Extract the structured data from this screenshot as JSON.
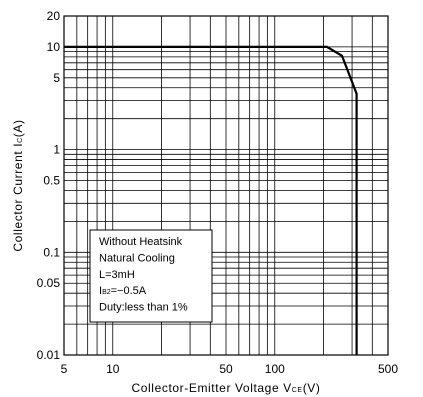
{
  "chart_data": {
    "type": "line",
    "xscale": "log",
    "yscale": "log",
    "xlim": [
      5,
      500
    ],
    "ylim": [
      0.01,
      20
    ],
    "x_ticks": [
      {
        "value": 5,
        "label": "5"
      },
      {
        "value": 10,
        "label": "10"
      },
      {
        "value": 50,
        "label": "50"
      },
      {
        "value": 100,
        "label": "100"
      },
      {
        "value": 500,
        "label": "500"
      }
    ],
    "y_ticks": [
      {
        "value": 20,
        "label": "20"
      },
      {
        "value": 10,
        "label": "10"
      },
      {
        "value": 5,
        "label": "5"
      },
      {
        "value": 1,
        "label": "1"
      },
      {
        "value": 0.5,
        "label": "0.5"
      },
      {
        "value": 0.1,
        "label": "0.1"
      },
      {
        "value": 0.05,
        "label": "0.05"
      },
      {
        "value": 0.01,
        "label": "0.01"
      }
    ],
    "xlabel": {
      "main": "Collector-Emitter Voltage V",
      "sub": "CE",
      "unit": "(V)"
    },
    "ylabel": {
      "main": "Collector Current I",
      "sub": "C",
      "unit": "(A)"
    },
    "grid": true,
    "series": [
      {
        "x": [
          5,
          210,
          260,
          320,
          320
        ],
        "y": [
          10,
          10,
          8.2,
          3.5,
          0.01
        ]
      }
    ],
    "annotation": {
      "lines": [
        {
          "text": "Without Heatsink"
        },
        {
          "text": "Natural Cooling"
        },
        {
          "text": "L=3mH"
        },
        {
          "main": "I",
          "sub": "B2",
          "rest": "=−0.5A"
        },
        {
          "text": "Duty:less than 1%"
        }
      ]
    }
  }
}
